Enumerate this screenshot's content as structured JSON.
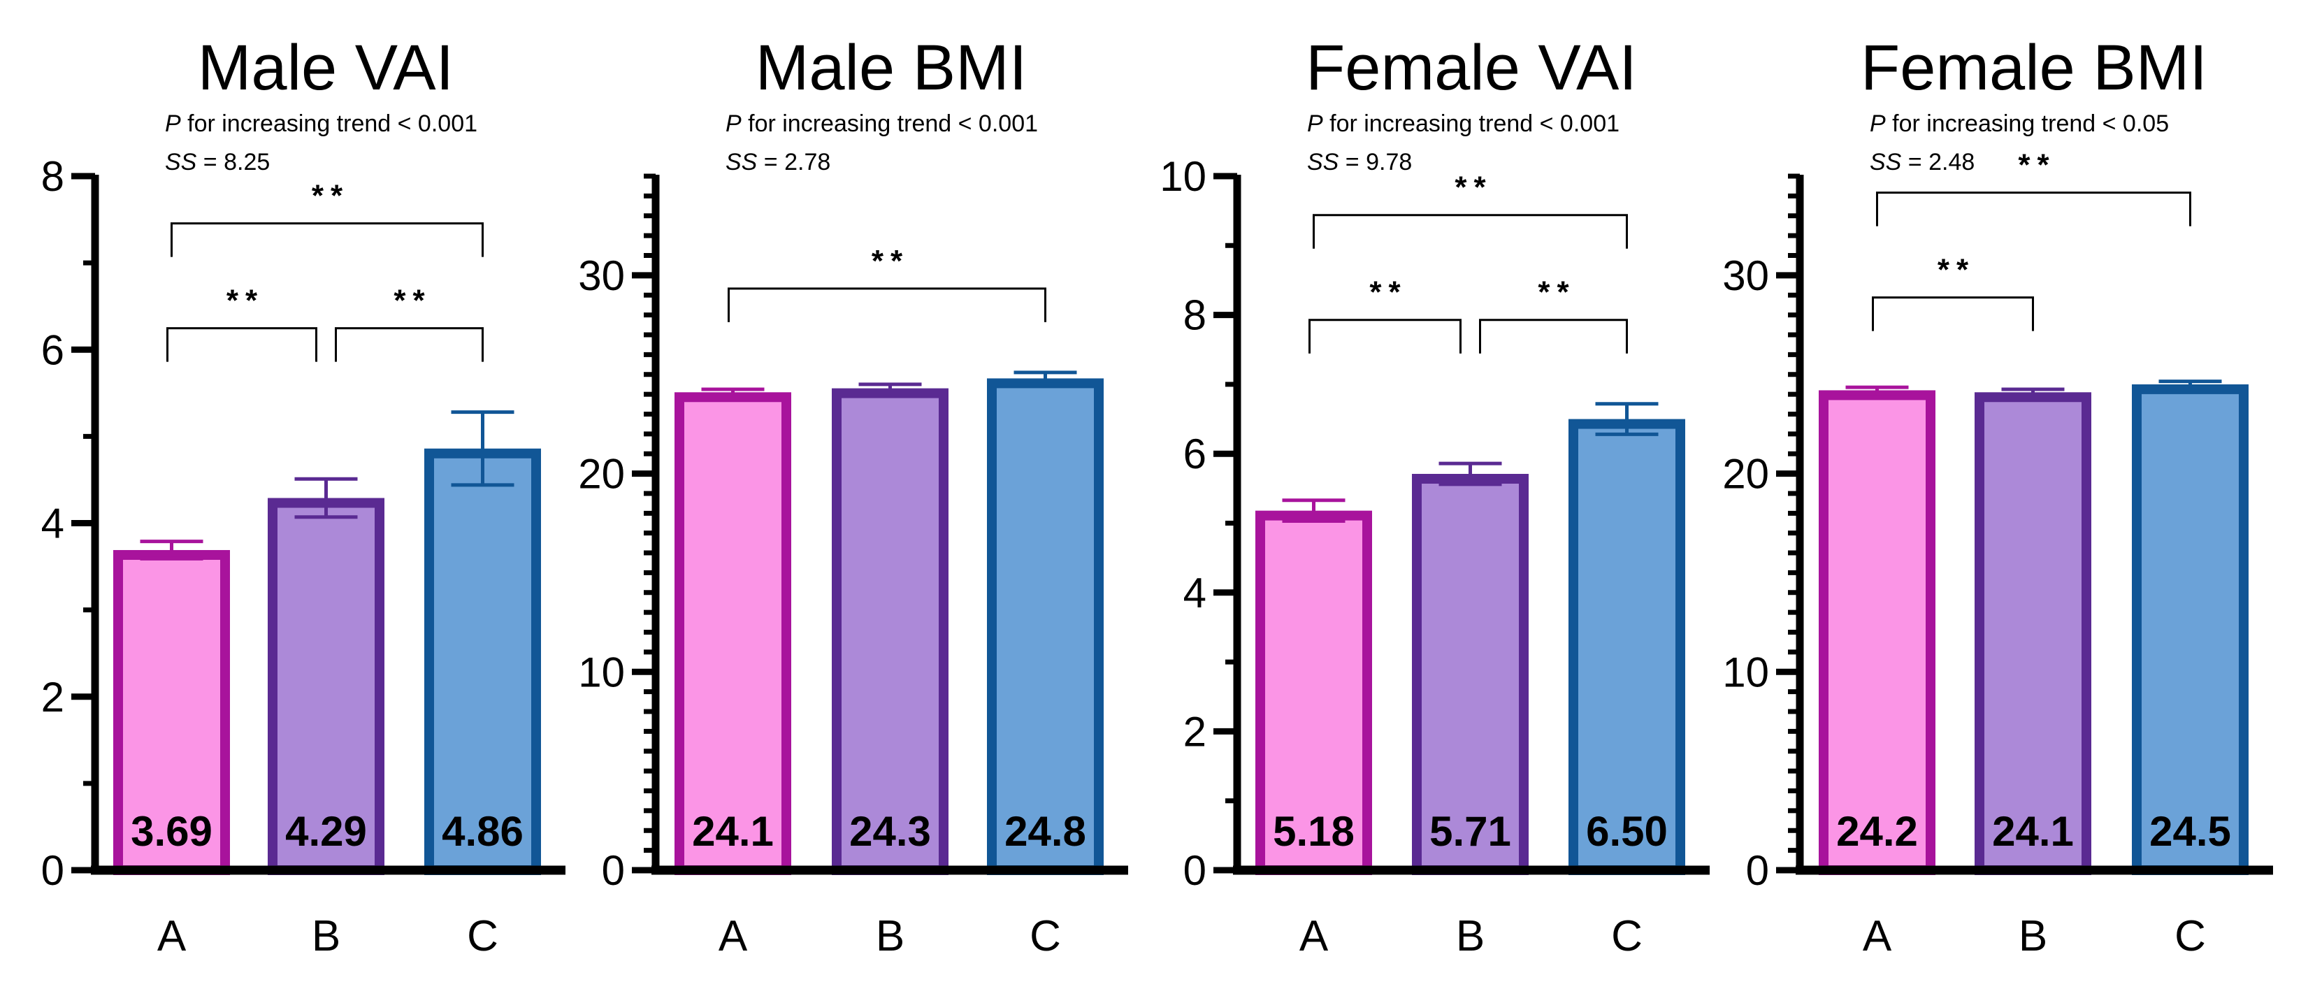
{
  "colors": {
    "A": {
      "fill": "#fb95e6",
      "stroke": "#a8139c"
    },
    "B": {
      "fill": "#ac89d8",
      "stroke": "#5a2a92"
    },
    "C": {
      "fill": "#6ba2d8",
      "stroke": "#115696"
    }
  },
  "chart_data": [
    {
      "type": "bar",
      "title": "Male VAI",
      "trend_prefix": "P",
      "trend_text": " for increasing trend < 0.001",
      "ss_prefix": "SS",
      "ss_text": " = 8.25",
      "categories": [
        "A",
        "B",
        "C"
      ],
      "values": [
        3.69,
        4.29,
        4.86
      ],
      "value_labels": [
        "3.69",
        "4.29",
        "4.86"
      ],
      "errors": [
        0.1,
        0.22,
        0.42
      ],
      "ylim": [
        0,
        8
      ],
      "major_ticks": [
        0,
        2,
        4,
        6,
        8
      ],
      "tick_labels": [
        "0",
        "2",
        "4",
        "6",
        "8"
      ],
      "minor_step": 1,
      "brackets": [
        {
          "from": 0,
          "to": 1,
          "label": "**",
          "level": 1
        },
        {
          "from": 1,
          "to": 2,
          "label": "**",
          "level": 1
        },
        {
          "from": 0,
          "to": 2,
          "label": "**",
          "level": 2
        }
      ]
    },
    {
      "type": "bar",
      "title": "Male BMI",
      "trend_prefix": "P",
      "trend_text": " for increasing trend < 0.001",
      "ss_prefix": "SS",
      "ss_text": " = 2.78",
      "categories": [
        "A",
        "B",
        "C"
      ],
      "values": [
        24.1,
        24.3,
        24.8
      ],
      "value_labels": [
        "24.1",
        "24.3",
        "24.8"
      ],
      "errors": [
        0.15,
        0.2,
        0.3
      ],
      "ylim": [
        0,
        35
      ],
      "major_ticks": [
        0,
        10,
        20,
        30
      ],
      "tick_labels": [
        "0",
        "10",
        "20",
        "30"
      ],
      "minor_step": 1,
      "brackets": [
        {
          "from": 0,
          "to": 2,
          "label": "**",
          "level": 1
        }
      ]
    },
    {
      "type": "bar",
      "title": "Female VAI",
      "trend_prefix": "P",
      "trend_text": " for increasing trend < 0.001",
      "ss_prefix": "SS",
      "ss_text": " = 9.78",
      "categories": [
        "A",
        "B",
        "C"
      ],
      "values": [
        5.18,
        5.71,
        6.5
      ],
      "value_labels": [
        "5.18",
        "5.71",
        "6.50"
      ],
      "errors": [
        0.15,
        0.15,
        0.22
      ],
      "ylim": [
        0,
        10
      ],
      "major_ticks": [
        0,
        2,
        4,
        6,
        8,
        10
      ],
      "tick_labels": [
        "0",
        "2",
        "4",
        "6",
        "8",
        "10"
      ],
      "minor_step": 1,
      "brackets": [
        {
          "from": 0,
          "to": 1,
          "label": "**",
          "level": 1
        },
        {
          "from": 1,
          "to": 2,
          "label": "**",
          "level": 1
        },
        {
          "from": 0,
          "to": 2,
          "label": "**",
          "level": 2
        }
      ]
    },
    {
      "type": "bar",
      "title": "Female BMI",
      "trend_prefix": "P",
      "trend_text": " for increasing trend < 0.05",
      "ss_prefix": "SS",
      "ss_text": " = 2.48",
      "categories": [
        "A",
        "B",
        "C"
      ],
      "values": [
        24.2,
        24.1,
        24.5
      ],
      "value_labels": [
        "24.2",
        "24.1",
        "24.5"
      ],
      "errors": [
        0.15,
        0.15,
        0.15
      ],
      "ylim": [
        0,
        35
      ],
      "major_ticks": [
        0,
        10,
        20,
        30
      ],
      "tick_labels": [
        "0",
        "10",
        "20",
        "30"
      ],
      "minor_step": 1,
      "brackets": [
        {
          "from": 0,
          "to": 1,
          "label": "**",
          "level": 1
        },
        {
          "from": 0,
          "to": 2,
          "label": "**",
          "level": 2
        }
      ]
    }
  ]
}
